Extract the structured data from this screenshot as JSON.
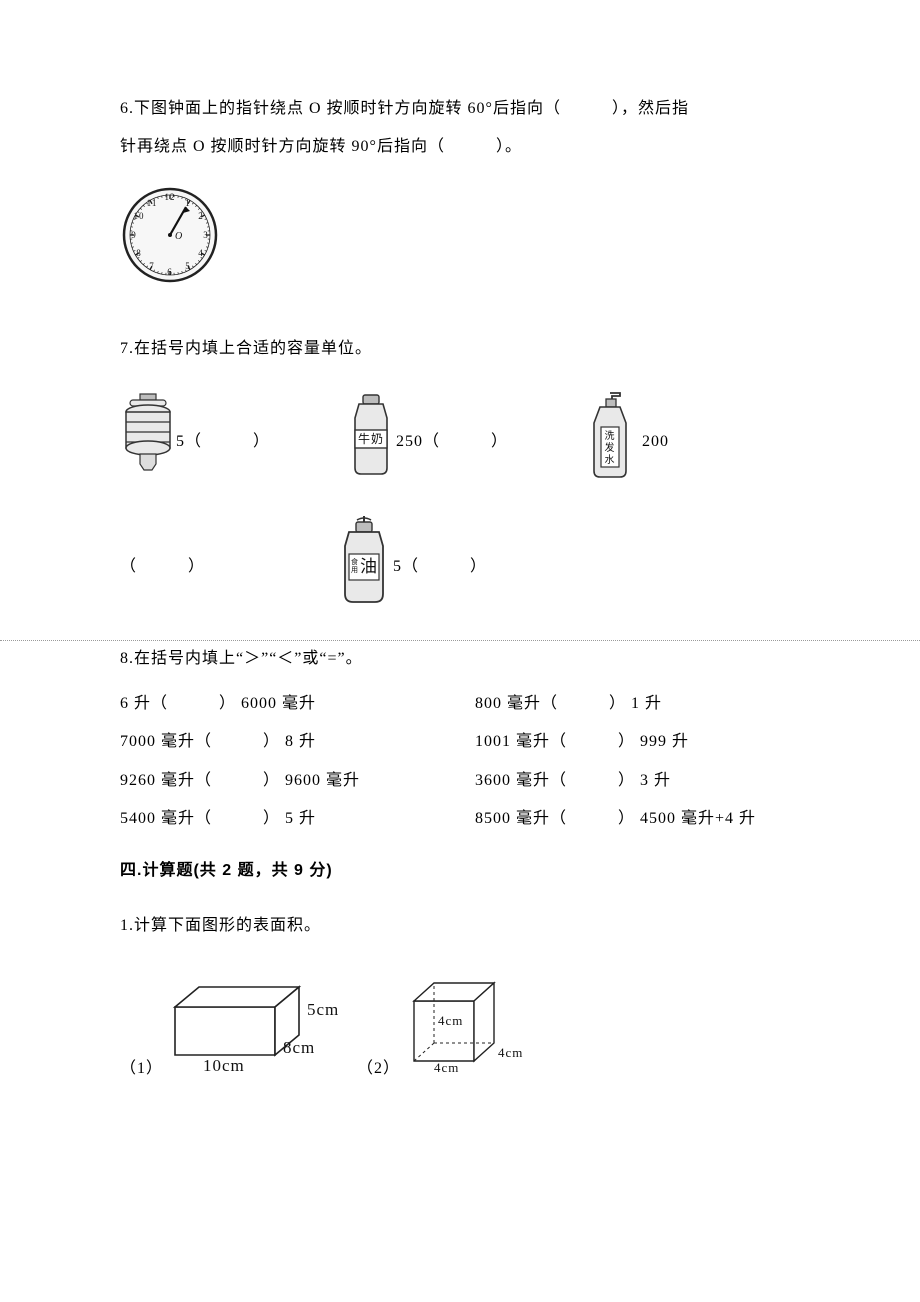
{
  "q6": {
    "line1": "6.下图钟面上的指针绕点 O 按顺时针方向旋转 60°后指向（　　　），然后指",
    "line2": "针再绕点 O 按顺时针方向旋转 90°后指向（　　　）。",
    "clock": {
      "numbers": [
        "12",
        "1",
        "2",
        "3",
        "4",
        "5",
        "6",
        "7",
        "8",
        "9",
        "10",
        "11"
      ],
      "centerLabel": "O",
      "faceFill": "#f7f7f7",
      "tickColor": "#222222",
      "handColor": "#111111"
    }
  },
  "q7": {
    "prompt": "7.在括号内填上合适的容量单位。",
    "items": [
      {
        "label": "",
        "value": "5（　　　）"
      },
      {
        "label": "牛奶",
        "value": "250（　　　）"
      },
      {
        "label_l1": "洗",
        "label_l2": "发",
        "label_l3": "水",
        "value": "200"
      },
      {
        "label_blank": "（　　　）"
      },
      {
        "label_a": "食",
        "label_b": "用",
        "label_c": "油",
        "value": "5（　　　）"
      }
    ],
    "colors": {
      "bottleFill": "#e9e9e9",
      "bottleStroke": "#333333",
      "capFill": "#bdbdbd",
      "labelBg": "#ffffff"
    }
  },
  "q8": {
    "prompt": "8.在括号内填上“＞”“＜”或“=”。",
    "rows": [
      {
        "left": "6 升（　　　） 6000 毫升",
        "right": "800 毫升（　　　） 1 升"
      },
      {
        "left": "7000 毫升（　　　） 8 升",
        "right": "1001 毫升（　　　） 999 升"
      },
      {
        "left": "9260 毫升（　　　） 9600 毫升",
        "right": "3600 毫升（　　　） 3 升"
      },
      {
        "left": "5400 毫升（　　　） 5 升",
        "right": "8500 毫升（　　　） 4500 毫升+4 升"
      }
    ]
  },
  "section4": {
    "title": "四.计算题(共 2 题，共 9 分)",
    "q1": "1.计算下面图形的表面积。",
    "shapes": {
      "rect": {
        "prefix": "（1）",
        "l": "10cm",
        "w": "8cm",
        "h": "5cm",
        "lineColor": "#222222",
        "serifFont": "serif"
      },
      "cube": {
        "prefix": "（2）",
        "a": "4cm",
        "lineColor": "#222222"
      }
    }
  }
}
